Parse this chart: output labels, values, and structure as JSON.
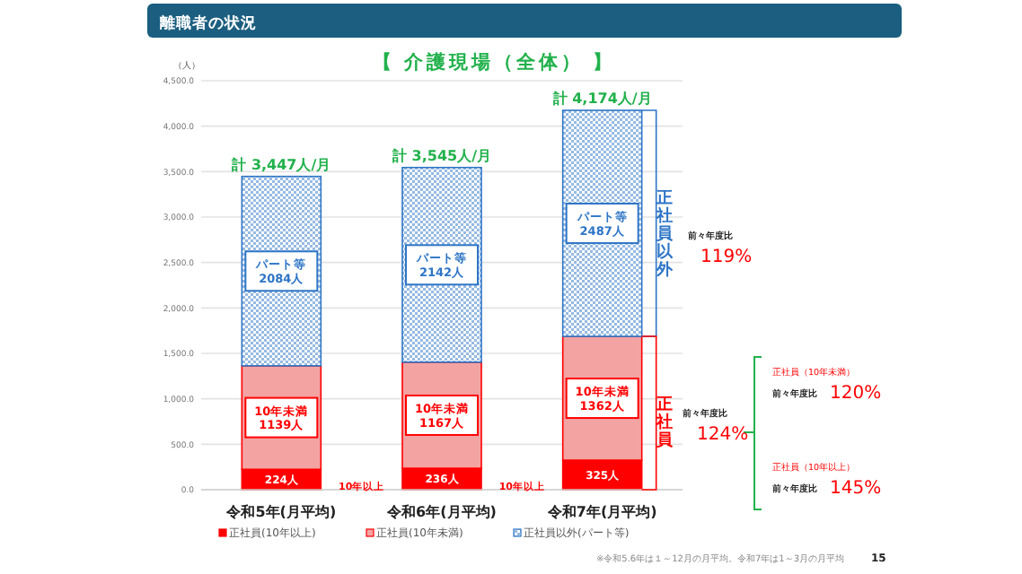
{
  "chart_data": {
    "type": "bar",
    "stacked": true,
    "title": "離職者の状況",
    "subtitle": "【 介護現場（全体） 】",
    "ylabel": "（人）",
    "categories": [
      "令和5年(月平均)",
      "令和6年(月平均)",
      "令和7年(月平均)"
    ],
    "series": [
      {
        "name": "正社員(10年以上)",
        "color": "#ff0000",
        "values": [
          224,
          236,
          325
        ],
        "value_labels": [
          "224人",
          "236人",
          "325人"
        ]
      },
      {
        "name": "正社員(10年未満)",
        "color": "#f4a3a3",
        "values": [
          1139,
          1167,
          1362
        ],
        "value_labels": [
          "10年未満\n1139人",
          "10年未満\n1167人",
          "10年未満\n1362人"
        ]
      },
      {
        "name": "正社員以外(パート等)",
        "color": "#2e75c6",
        "values": [
          2084,
          2142,
          2487
        ],
        "value_labels": [
          "パート等\n2084人",
          "パート等\n2142人",
          "パート等\n2487人"
        ]
      }
    ],
    "totals": [
      "計 3,447人/月",
      "計 3,545人/月",
      "計 4,174人/月"
    ],
    "ylim": [
      0,
      4500
    ],
    "yticks": [
      {
        "value": 0,
        "label": "0.0"
      },
      {
        "value": 500,
        "label": "500.0"
      },
      {
        "value": 1000,
        "label": "1,000.0"
      },
      {
        "value": 1500,
        "label": "1,500.0"
      },
      {
        "value": 2000,
        "label": "2,000.0"
      },
      {
        "value": 2500,
        "label": "2,500.0"
      },
      {
        "value": 3000,
        "label": "3,000.0"
      },
      {
        "value": 3500,
        "label": "3,500.0"
      },
      {
        "value": 4000,
        "label": "4,000.0"
      },
      {
        "value": 4500,
        "label": "4,500.0"
      }
    ],
    "grid": "y",
    "legend": "bottom",
    "annotations": [
      "10年以上",
      "10年以上",
      "正社員以外",
      "正社員",
      "前々年度比",
      "119%",
      "前々年度比",
      "124%",
      "正社員（10年未満）",
      "前々年度比",
      "120%",
      "正社員（10年以上）",
      "前々年度比",
      "145%",
      "※令和5.6年は１～12月の月平均。令和7年は1～3月の月平均",
      "15"
    ]
  }
}
